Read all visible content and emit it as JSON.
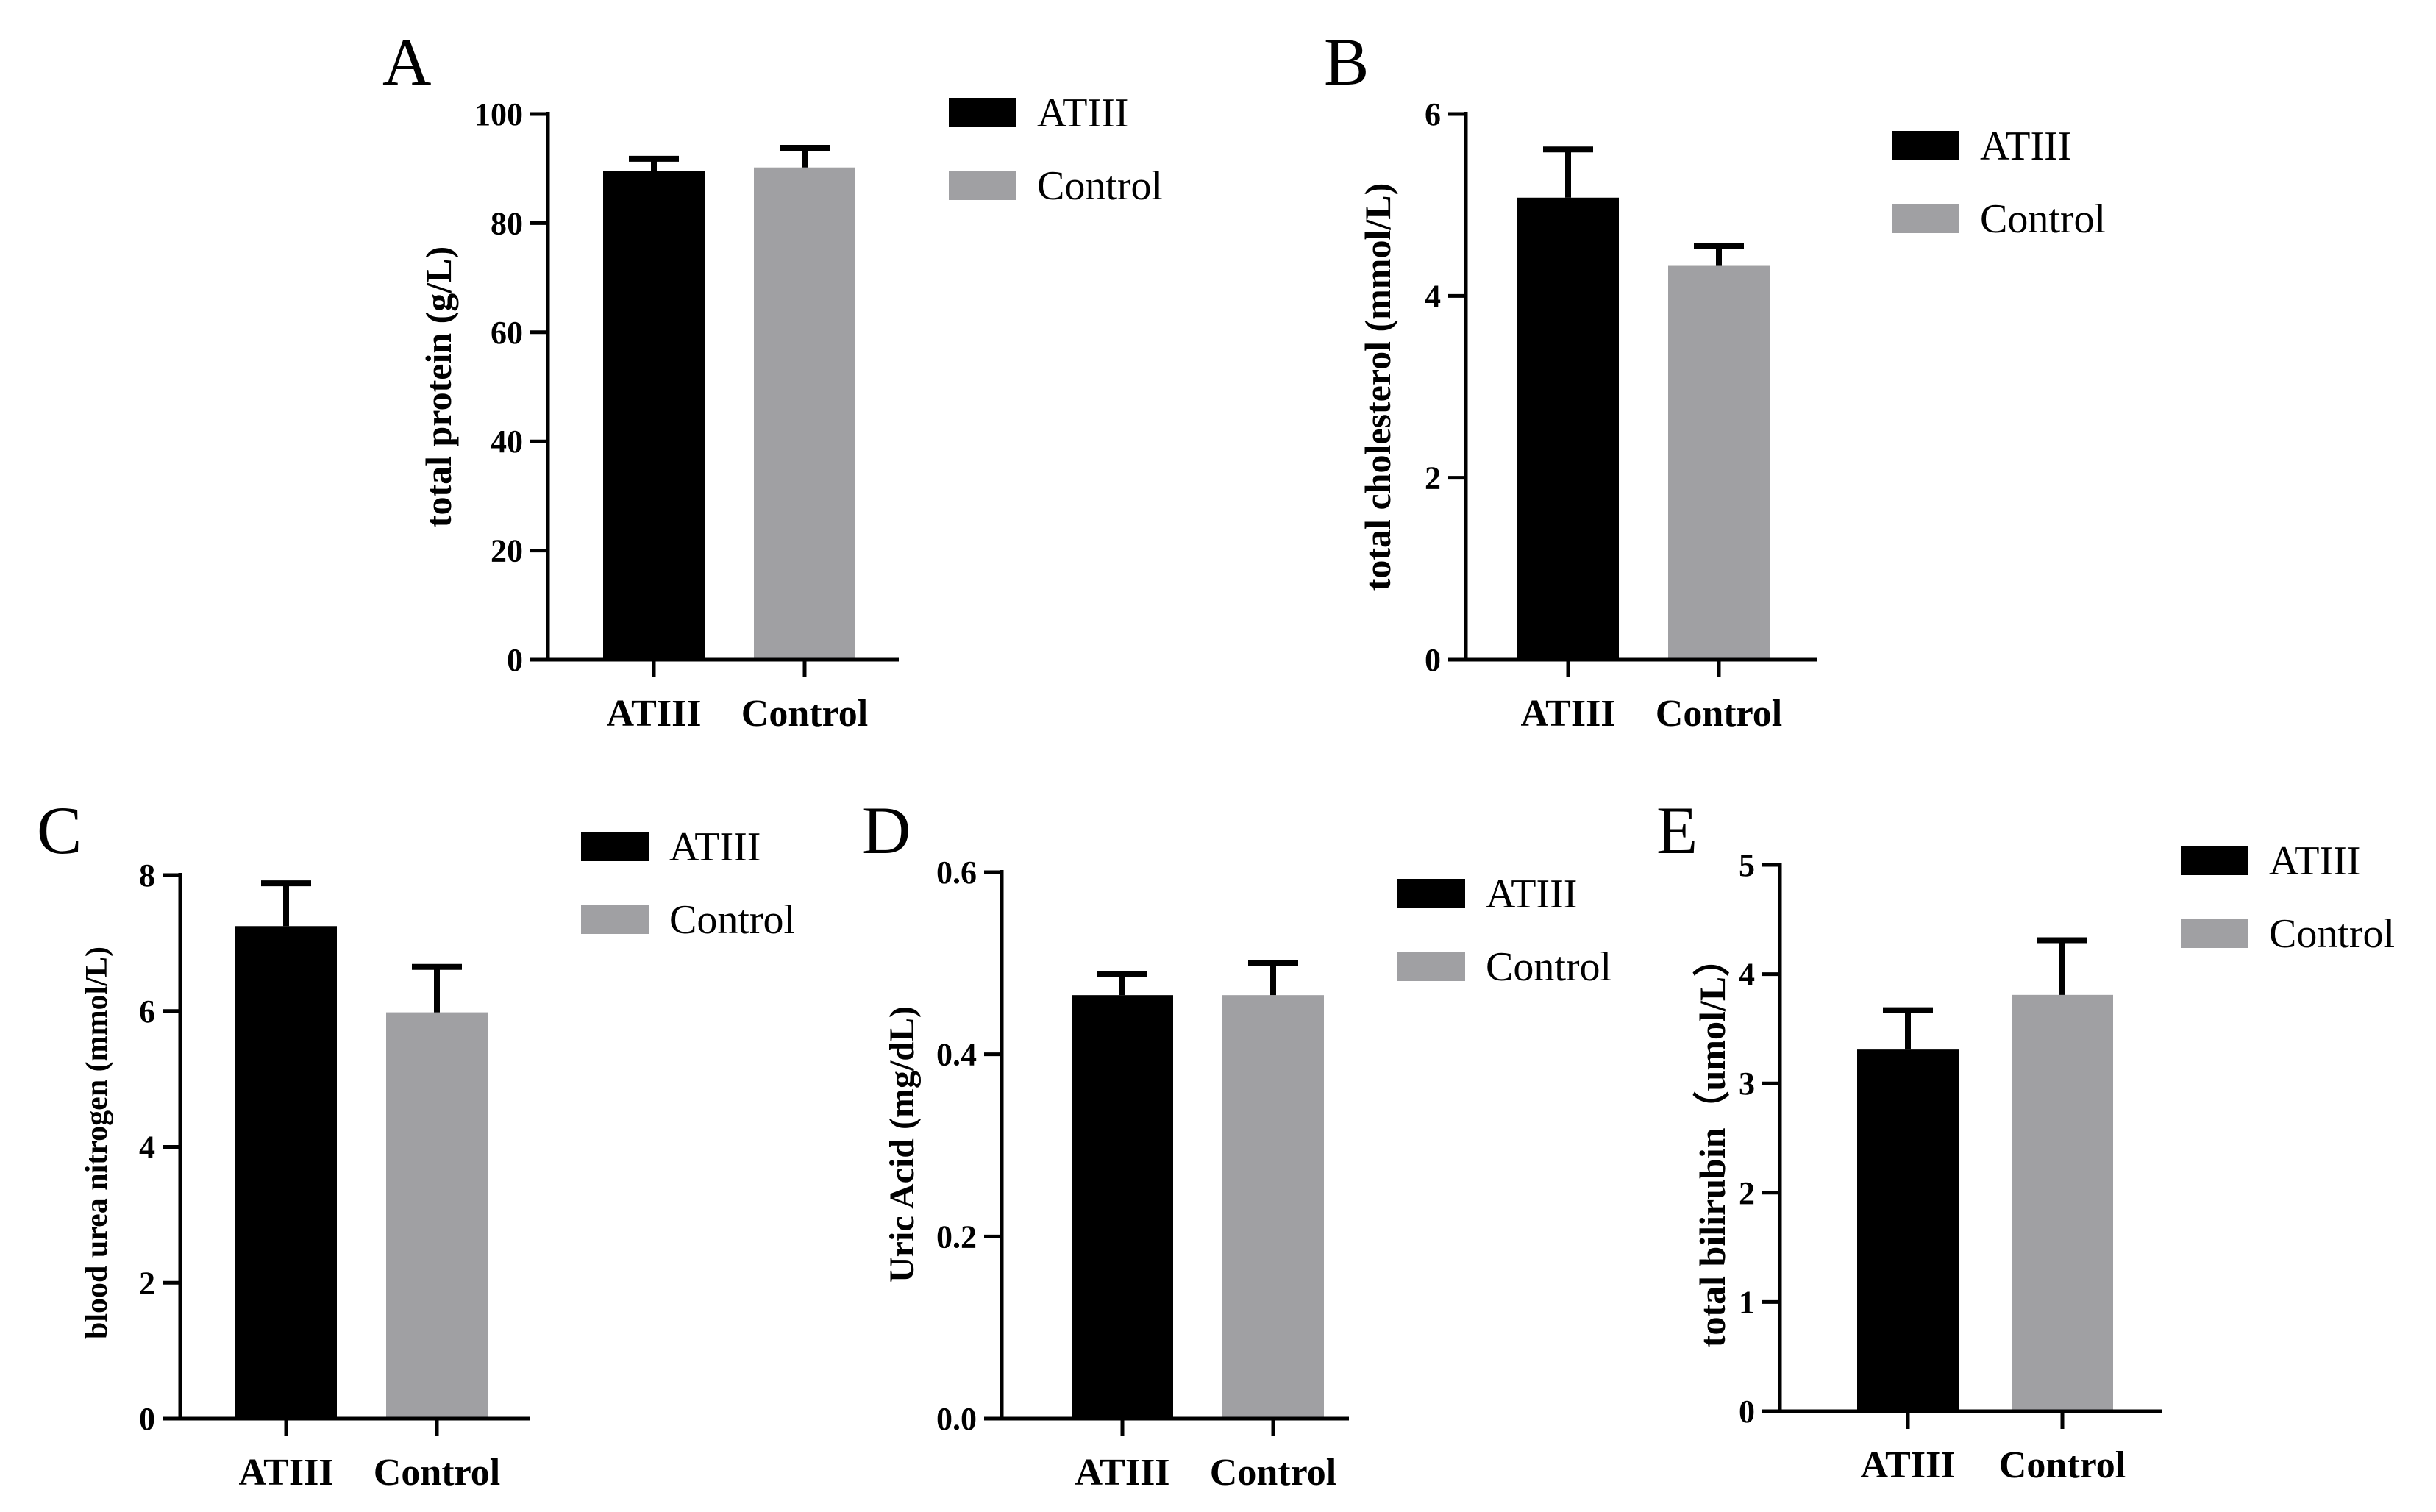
{
  "chart_data": [
    {
      "panel": "A",
      "type": "bar",
      "categories": [
        "ATIII",
        "Control"
      ],
      "values": [
        89.5,
        90.2
      ],
      "errors": [
        2.3,
        3.6
      ],
      "colors": [
        "#000000",
        "#a0a0a3"
      ],
      "ylabel": "total protein (g/L)",
      "ylim": [
        0,
        100
      ],
      "yticks": [
        "0",
        "20",
        "40",
        "60",
        "80",
        "100"
      ],
      "legend": [
        "ATIII",
        "Control"
      ]
    },
    {
      "panel": "B",
      "type": "bar",
      "categories": [
        "ATIII",
        "Control"
      ],
      "values": [
        5.08,
        4.33
      ],
      "errors": [
        0.53,
        0.22
      ],
      "colors": [
        "#000000",
        "#a0a0a3"
      ],
      "ylabel": "total cholesterol (mmol/L)",
      "ylim": [
        0,
        6
      ],
      "yticks": [
        "0",
        "2",
        "4",
        "6"
      ],
      "legend": [
        "ATIII",
        "Control"
      ]
    },
    {
      "panel": "C",
      "type": "bar",
      "categories": [
        "ATIII",
        "Control"
      ],
      "values": [
        7.25,
        5.98
      ],
      "errors": [
        0.63,
        0.67
      ],
      "colors": [
        "#000000",
        "#a0a0a3"
      ],
      "ylabel": "blood urea nitrogen (mmol/L)",
      "ylim": [
        0,
        8
      ],
      "yticks": [
        "0",
        "2",
        "4",
        "6",
        "8"
      ],
      "legend": [
        "ATIII",
        "Control"
      ]
    },
    {
      "panel": "D",
      "type": "bar",
      "categories": [
        "ATIII",
        "Control"
      ],
      "values": [
        0.465,
        0.465
      ],
      "errors": [
        0.023,
        0.035
      ],
      "colors": [
        "#000000",
        "#a0a0a3"
      ],
      "ylabel": "Uric Acid (mg/dL)",
      "ylim": [
        0,
        0.6
      ],
      "yticks": [
        "0.0",
        "0.2",
        "0.4",
        "0.6"
      ],
      "legend": [
        "ATIII",
        "Control"
      ]
    },
    {
      "panel": "E",
      "type": "bar",
      "categories": [
        "ATIII",
        "Control"
      ],
      "values": [
        3.31,
        3.81
      ],
      "errors": [
        0.36,
        0.5
      ],
      "colors": [
        "#000000",
        "#a0a0a3"
      ],
      "ylabel": "total bilirubin（umol/L）",
      "ylim": [
        0,
        5
      ],
      "yticks": [
        "0",
        "1",
        "2",
        "3",
        "4",
        "5"
      ],
      "legend": [
        "ATIII",
        "Control"
      ]
    }
  ]
}
